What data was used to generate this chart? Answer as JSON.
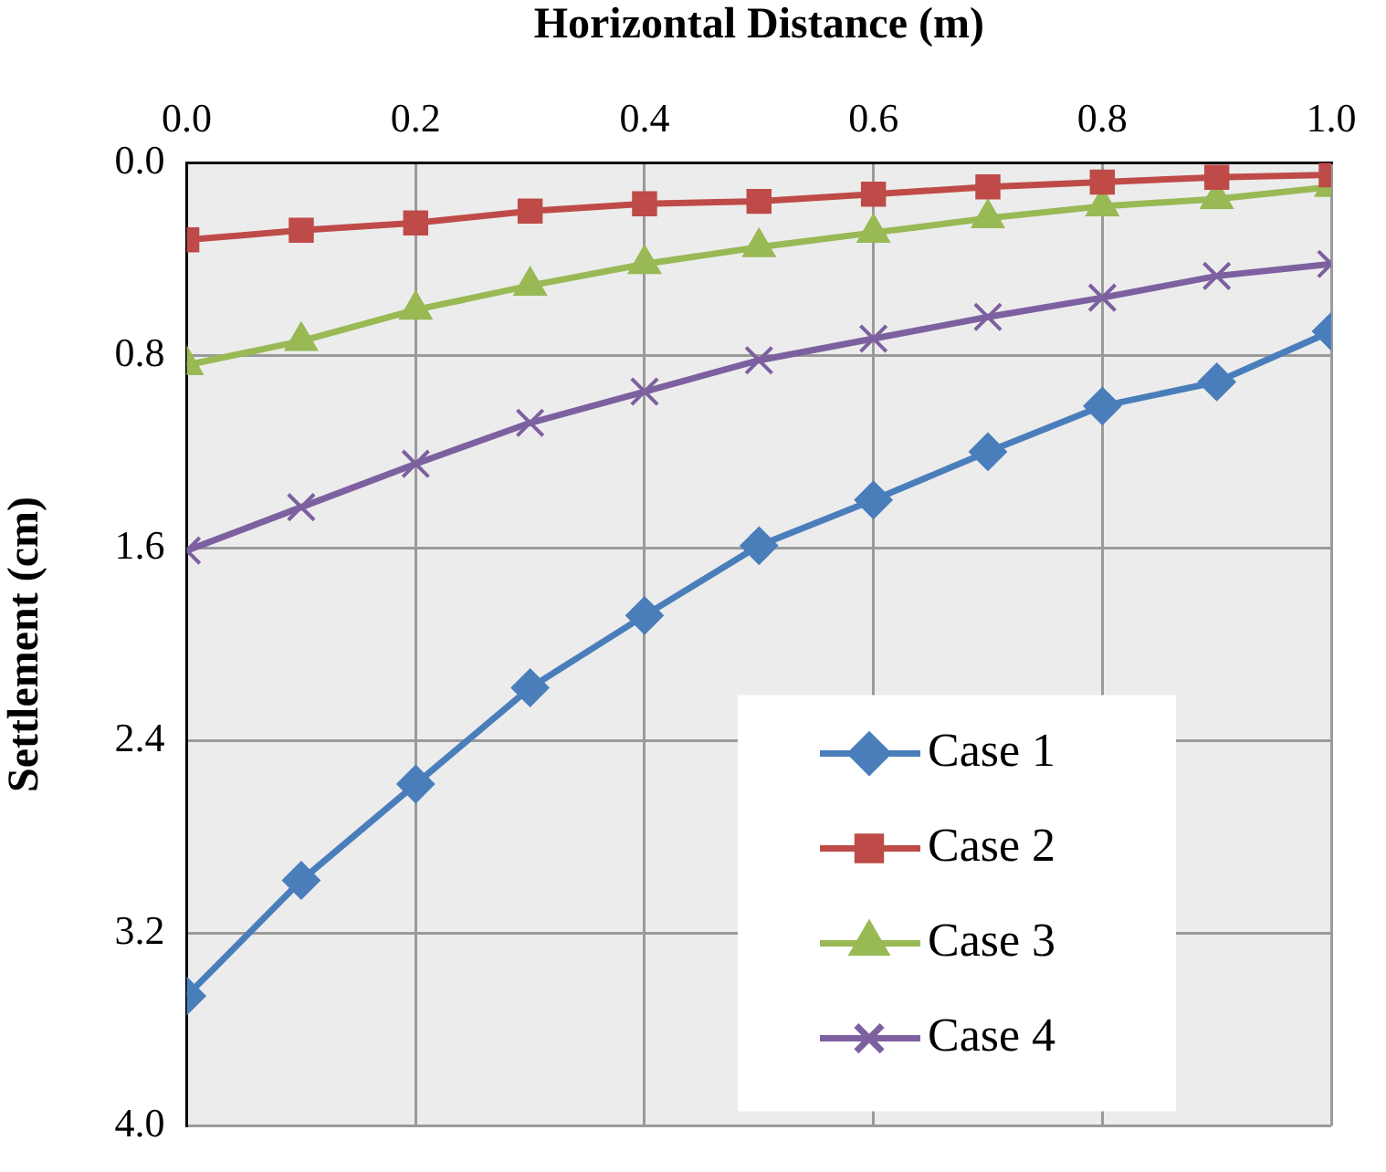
{
  "chart_data": {
    "type": "line",
    "xlabel": "Horizontal Distance (m)",
    "ylabel": "Settlement (cm)",
    "x": [
      0,
      0.1,
      0.2,
      0.3,
      0.4,
      0.5,
      0.6,
      0.7,
      0.8,
      0.9,
      1.0
    ],
    "xlim": [
      0,
      1
    ],
    "xticks": [
      {
        "value": 0,
        "label": "0.0"
      },
      0.2,
      0.4,
      0.6,
      0.8,
      {
        "value": 1,
        "label": "1.0"
      }
    ],
    "ylim": [
      4,
      0
    ],
    "yticks": [
      {
        "value": 0,
        "label": "0.0"
      },
      0.8,
      1.6,
      2.4,
      3.2,
      {
        "value": 4,
        "label": "4.0"
      }
    ],
    "grid": true,
    "legend": "bottom right",
    "series": [
      {
        "name": "Case 1",
        "color": "#4a7ebb",
        "marker": "diamond",
        "values": [
          3.46,
          2.98,
          2.58,
          2.18,
          1.88,
          1.59,
          1.4,
          1.2,
          1.01,
          0.91,
          0.7
        ]
      },
      {
        "name": "Case 2",
        "color": "#be4b48",
        "marker": "square",
        "values": [
          0.32,
          0.28,
          0.25,
          0.2,
          0.17,
          0.16,
          0.13,
          0.1,
          0.08,
          0.06,
          0.05
        ]
      },
      {
        "name": "Case 3",
        "color": "#98b954",
        "marker": "triangle",
        "values": [
          0.84,
          0.74,
          0.61,
          0.51,
          0.42,
          0.35,
          0.29,
          0.23,
          0.18,
          0.15,
          0.1
        ]
      },
      {
        "name": "Case 4",
        "color": "#7d60a0",
        "marker": "cross",
        "values": [
          1.61,
          1.43,
          1.25,
          1.08,
          0.95,
          0.82,
          0.73,
          0.64,
          0.56,
          0.47,
          0.42
        ]
      }
    ]
  }
}
